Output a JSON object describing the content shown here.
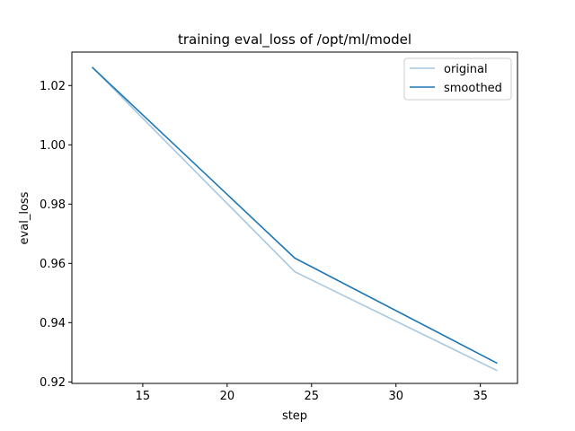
{
  "chart_data": {
    "type": "line",
    "title": "training eval_loss of /opt/ml/model",
    "xlabel": "step",
    "ylabel": "eval_loss",
    "xlim": [
      10.8,
      37.2
    ],
    "ylim": [
      0.9195,
      1.0313
    ],
    "xticks": [
      15,
      20,
      25,
      30,
      35
    ],
    "yticks": [
      0.92,
      0.94,
      0.96,
      0.98,
      1.0,
      1.02
    ],
    "ytick_labels": [
      "0.92",
      "0.94",
      "0.96",
      "0.98",
      "1.00",
      "1.02"
    ],
    "xtick_labels": [
      "15",
      "20",
      "25",
      "30",
      "35"
    ],
    "grid": false,
    "legend_position": "top-right",
    "series": [
      {
        "name": "original",
        "color": "#a6c8e0",
        "x": [
          12,
          24,
          36
        ],
        "y": [
          1.0262,
          0.9572,
          0.9238
        ]
      },
      {
        "name": "smoothed",
        "color": "#1f77b4",
        "x": [
          12,
          24,
          36
        ],
        "y": [
          1.0262,
          0.9618,
          0.9263
        ]
      }
    ]
  }
}
